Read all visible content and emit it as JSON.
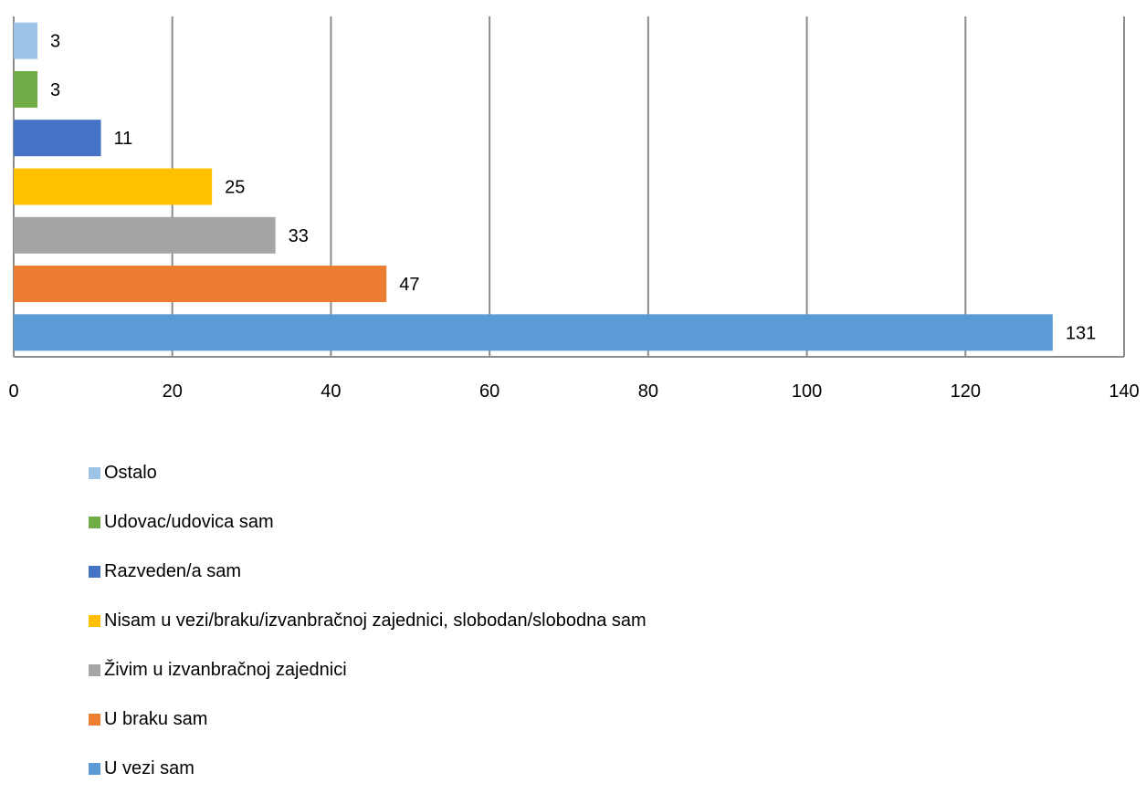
{
  "chart_data": {
    "type": "bar",
    "orientation": "horizontal",
    "title": "",
    "xlabel": "",
    "ylabel": "",
    "xlim": [
      0,
      140
    ],
    "x_ticks": [
      0,
      20,
      40,
      60,
      80,
      100,
      120,
      140
    ],
    "grid": "vertical",
    "legend_position": "bottom",
    "data_labels": true,
    "categories": [
      "Ostalo",
      "Udovac/udovica sam",
      "Razveden/a sam",
      "Nisam u vezi/braku/izvanbračnoj zajednici, slobodan/slobodna sam",
      "Živim u izvanbračnoj zajednici",
      "U braku sam",
      "U vezi sam"
    ],
    "values": [
      3,
      3,
      11,
      25,
      33,
      47,
      131
    ],
    "colors": [
      "#9dc3e6",
      "#70ad47",
      "#4472c4",
      "#ffc000",
      "#a5a5a5",
      "#ed7d31",
      "#5b9bd5"
    ]
  }
}
